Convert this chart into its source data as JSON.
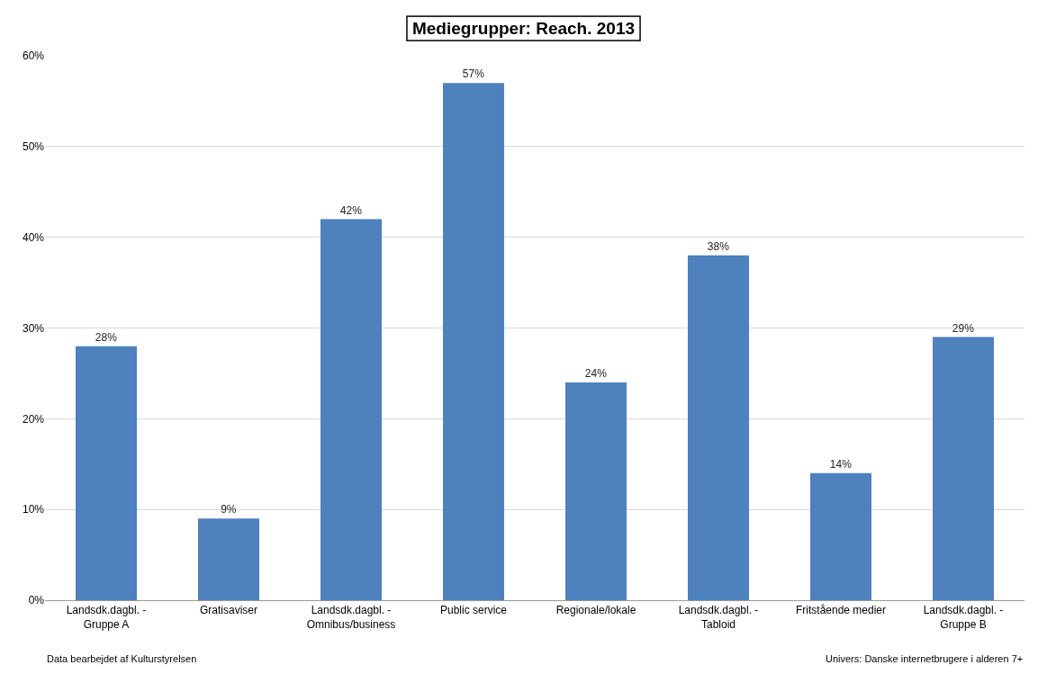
{
  "chart_data": {
    "type": "bar",
    "title": "Mediegrupper: Reach. 2013",
    "categories": [
      "Landsdk.dagbl. - Gruppe A",
      "Gratisaviser",
      "Landsdk.dagbl. - Omnibus/business",
      "Public service",
      "Regionale/lokale",
      "Landsdk.dagbl. - Tabloid",
      "Fritstående medier",
      "Landsdk.dagbl. - Gruppe B"
    ],
    "values": [
      28,
      9,
      42,
      57,
      24,
      38,
      14,
      29
    ],
    "value_labels": [
      "28%",
      "9%",
      "42%",
      "57%",
      "24%",
      "38%",
      "14%",
      "29%"
    ],
    "color": "#4f81bd",
    "ylim": [
      0,
      60
    ],
    "yticks": [
      {
        "value": 0,
        "label": "0%"
      },
      {
        "value": 10,
        "label": "10%"
      },
      {
        "value": 20,
        "label": "20%"
      },
      {
        "value": 30,
        "label": "30%"
      },
      {
        "value": 40,
        "label": "40%"
      },
      {
        "value": 50,
        "label": "50%"
      },
      {
        "value": 60,
        "label": "60%"
      }
    ],
    "grid": "y",
    "annotations": [
      "Data bearbejdet af Kulturstyrelsen",
      "Univers: Danske internetbrugere i alderen 7+"
    ]
  }
}
